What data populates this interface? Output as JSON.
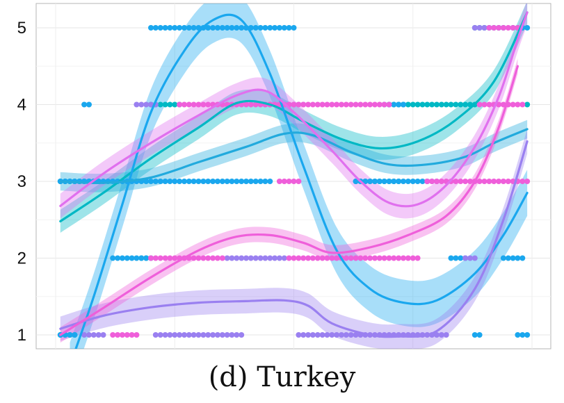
{
  "caption": "(d) Turkey",
  "chart_data": {
    "type": "scatter",
    "title": "",
    "xlabel": "",
    "ylabel": "",
    "x_ticks_labeled": false,
    "xlim": [
      0,
      100
    ],
    "ylim": [
      0.8,
      5.2
    ],
    "y_ticks": [
      "1",
      "2",
      "3",
      "4",
      "5"
    ],
    "grid": true,
    "legend": "none",
    "series": [
      {
        "color": "#00b8c4",
        "points": [
          {
            "y": 1,
            "x": [
              1,
              4
            ]
          },
          {
            "y": 2,
            "x": [
              18,
              20
            ]
          },
          {
            "y": 3,
            "x": [
              1,
              9
            ]
          },
          {
            "y": 3,
            "x": [
              63,
              72
            ]
          },
          {
            "y": 4,
            "x": [
              20,
              26
            ]
          },
          {
            "y": 4,
            "x": [
              70,
              88
            ]
          },
          {
            "y": 4,
            "x": [
              99,
              99
            ]
          },
          {
            "y": 5,
            "x": [
              88,
              94
            ]
          },
          {
            "y": 5,
            "x": [
              96,
              98
            ]
          }
        ],
        "trend": [
          [
            1,
            2.48
          ],
          [
            10,
            2.85
          ],
          [
            20,
            3.3
          ],
          [
            30,
            3.7
          ],
          [
            38,
            4.02
          ],
          [
            45,
            4.0
          ],
          [
            52,
            3.78
          ],
          [
            60,
            3.55
          ],
          [
            68,
            3.43
          ],
          [
            76,
            3.52
          ],
          [
            84,
            3.8
          ],
          [
            92,
            4.3
          ],
          [
            99,
            5.2
          ]
        ],
        "band": 0.15
      },
      {
        "color": "#1aa7ee",
        "points": [
          {
            "y": 1,
            "x": [
              1,
              4
            ]
          },
          {
            "y": 1,
            "x": [
              88,
              89
            ]
          },
          {
            "y": 1,
            "x": [
              97,
              99
            ]
          },
          {
            "y": 2,
            "x": [
              12,
              19
            ]
          },
          {
            "y": 2,
            "x": [
              83,
              86
            ]
          },
          {
            "y": 2,
            "x": [
              94,
              98
            ]
          },
          {
            "y": 3,
            "x": [
              1,
              45
            ]
          },
          {
            "y": 3,
            "x": [
              63,
              78
            ]
          },
          {
            "y": 4,
            "x": [
              6,
              7
            ]
          },
          {
            "y": 4,
            "x": [
              69,
              73
            ]
          },
          {
            "y": 5,
            "x": [
              20,
              50
            ]
          },
          {
            "y": 5,
            "x": [
              98,
              99
            ]
          }
        ],
        "trend": [
          [
            3,
            0.6
          ],
          [
            8,
            1.5
          ],
          [
            14,
            2.7
          ],
          [
            20,
            3.9
          ],
          [
            27,
            4.7
          ],
          [
            33,
            5.1
          ],
          [
            39,
            5.1
          ],
          [
            45,
            4.4
          ],
          [
            52,
            3.2
          ],
          [
            59,
            2.1
          ],
          [
            66,
            1.6
          ],
          [
            73,
            1.42
          ],
          [
            80,
            1.45
          ],
          [
            88,
            1.8
          ],
          [
            94,
            2.3
          ],
          [
            99,
            2.85
          ]
        ],
        "band": 0.3
      },
      {
        "color": "#22aadd",
        "points": [],
        "trend": [
          [
            1,
            3.0
          ],
          [
            10,
            2.98
          ],
          [
            20,
            3.05
          ],
          [
            30,
            3.25
          ],
          [
            40,
            3.45
          ],
          [
            48,
            3.62
          ],
          [
            54,
            3.6
          ],
          [
            62,
            3.38
          ],
          [
            70,
            3.22
          ],
          [
            78,
            3.22
          ],
          [
            86,
            3.32
          ],
          [
            92,
            3.5
          ],
          [
            99,
            3.68
          ]
        ],
        "band": 0.12
      },
      {
        "color": "#9a80f0",
        "points": [
          {
            "y": 1,
            "x": [
              6,
              10
            ]
          },
          {
            "y": 1,
            "x": [
              21,
              39
            ]
          },
          {
            "y": 1,
            "x": [
              51,
              82
            ]
          },
          {
            "y": 2,
            "x": [
              36,
              48
            ]
          },
          {
            "y": 2,
            "x": [
              86,
              88
            ]
          },
          {
            "y": 3,
            "x": [
              78,
              80
            ]
          },
          {
            "y": 4,
            "x": [
              17,
              21
            ]
          },
          {
            "y": 4,
            "x": [
              44,
              52
            ]
          },
          {
            "y": 5,
            "x": [
              88,
              90
            ]
          }
        ],
        "trend": [
          [
            1,
            1.08
          ],
          [
            10,
            1.25
          ],
          [
            20,
            1.36
          ],
          [
            30,
            1.42
          ],
          [
            40,
            1.44
          ],
          [
            48,
            1.45
          ],
          [
            53,
            1.38
          ],
          [
            58,
            1.15
          ],
          [
            66,
            1.0
          ],
          [
            72,
            0.98
          ],
          [
            80,
            1.05
          ],
          [
            88,
            1.6
          ],
          [
            94,
            2.5
          ],
          [
            99,
            3.52
          ]
        ],
        "band": 0.16
      },
      {
        "color": "#ef5fda",
        "points": [
          {
            "y": 1,
            "x": [
              12,
              17
            ]
          },
          {
            "y": 2,
            "x": [
              20,
              35
            ]
          },
          {
            "y": 2,
            "x": [
              49,
              76
            ]
          },
          {
            "y": 3,
            "x": [
              47,
              51
            ]
          },
          {
            "y": 3,
            "x": [
              78,
              99
            ]
          },
          {
            "y": 4,
            "x": [
              26,
              70
            ]
          },
          {
            "y": 4,
            "x": [
              89,
              98
            ]
          },
          {
            "y": 5,
            "x": [
              91,
              97
            ]
          }
        ],
        "trend": [
          [
            1,
            1.0
          ],
          [
            10,
            1.35
          ],
          [
            20,
            1.75
          ],
          [
            30,
            2.1
          ],
          [
            38,
            2.28
          ],
          [
            45,
            2.3
          ],
          [
            52,
            2.2
          ],
          [
            58,
            2.07
          ],
          [
            66,
            2.14
          ],
          [
            74,
            2.3
          ],
          [
            82,
            2.55
          ],
          [
            88,
            3.0
          ],
          [
            93,
            3.7
          ],
          [
            97,
            4.5
          ]
        ],
        "band": 0.1
      },
      {
        "color": "#e070ee",
        "points": [],
        "trend": [
          [
            1,
            2.68
          ],
          [
            10,
            3.1
          ],
          [
            20,
            3.5
          ],
          [
            30,
            3.86
          ],
          [
            38,
            4.12
          ],
          [
            44,
            4.18
          ],
          [
            50,
            3.9
          ],
          [
            58,
            3.4
          ],
          [
            64,
            3.0
          ],
          [
            70,
            2.72
          ],
          [
            76,
            2.7
          ],
          [
            82,
            2.95
          ],
          [
            88,
            3.45
          ],
          [
            93,
            4.1
          ],
          [
            97,
            4.85
          ],
          [
            99,
            5.2
          ]
        ],
        "band": 0.16
      }
    ]
  }
}
